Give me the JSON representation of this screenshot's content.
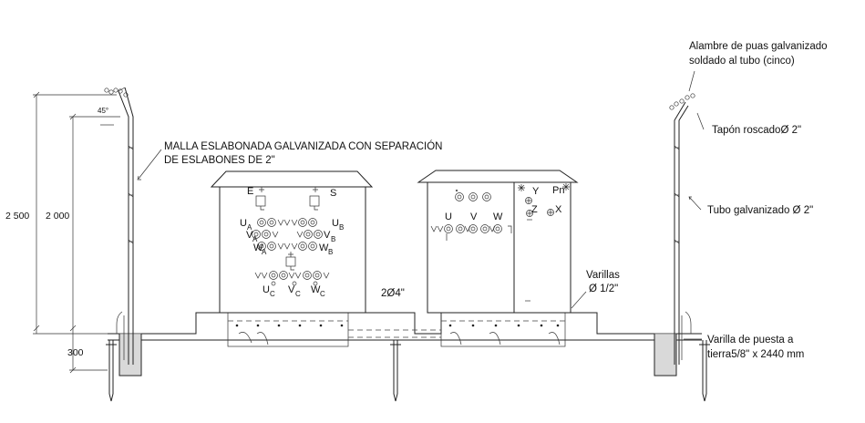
{
  "annotations": {
    "malla": [
      "MALLA ESLABONADA GALVANIZADA CON SEPARACIÓN",
      "DE ESLABONES DE 2\""
    ],
    "alambre": [
      "Alambre de puas galvanizado",
      "soldado al tubo (cinco)"
    ],
    "tapon": "Tapón roscadoØ 2\"",
    "tubo": "Tubo galvanizado Ø 2\"",
    "varillas": [
      "Varillas",
      "Ø 1/2\""
    ],
    "puesta_tierra": [
      "Varilla de puesta a",
      "tierra5/8\" x 2440 mm"
    ],
    "conduit": "2Ø4\""
  },
  "dimensions": {
    "total_height": "2 500",
    "fence_height": "2 000",
    "buried": "300",
    "angle": "45°"
  },
  "left_unit": {
    "E": "E",
    "S": "S",
    "UA": {
      "main": "U",
      "sub": "A"
    },
    "VA": {
      "main": "V",
      "sub": "A"
    },
    "WA": {
      "main": "W",
      "sub": "A"
    },
    "UB": {
      "main": "U",
      "sub": "B"
    },
    "VB": {
      "main": "V",
      "sub": "B"
    },
    "WB": {
      "main": "W",
      "sub": "B"
    },
    "UC": {
      "main": "U",
      "sub": "C"
    },
    "VC": {
      "main": "V",
      "sub": "C"
    },
    "WC": {
      "main": "W",
      "sub": "C"
    }
  },
  "right_unit": {
    "U": "U",
    "V": "V",
    "W": "W",
    "Y": "Y",
    "Pn": "Pn",
    "Z": "Z",
    "X": "X"
  }
}
